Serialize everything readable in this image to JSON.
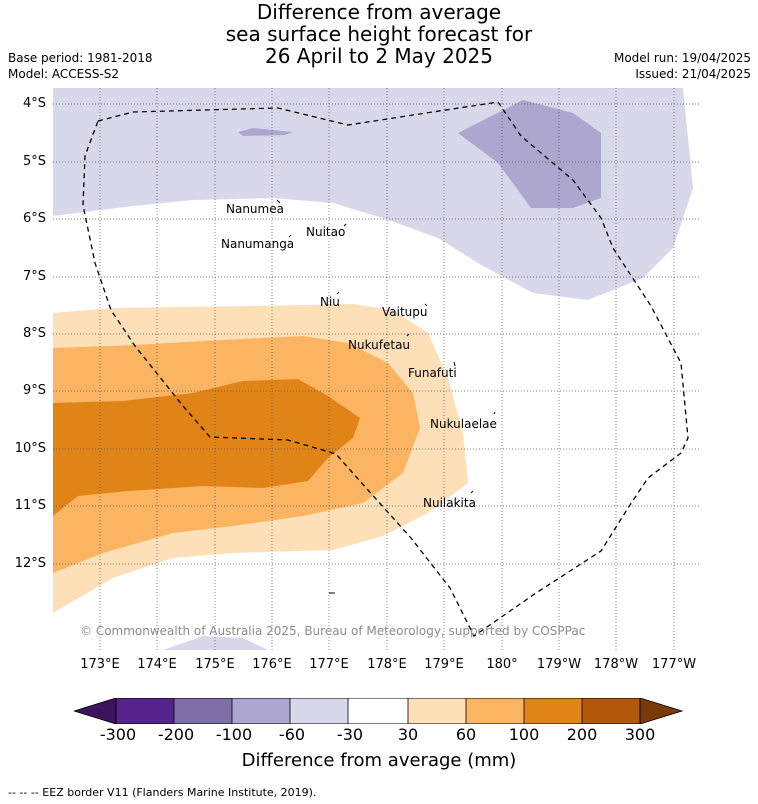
{
  "title": {
    "line1": "Difference from average",
    "line2": "sea surface height forecast for",
    "line3": "26 April to 2 May 2025"
  },
  "meta": {
    "base_period": "Base period: 1981-2018",
    "model": "Model: ACCESS-S2",
    "model_run": "Model run: 19/04/2025",
    "issued": "Issued: 21/04/2025"
  },
  "map": {
    "lat_labels": [
      "4°S",
      "5°S",
      "6°S",
      "7°S",
      "8°S",
      "9°S",
      "10°S",
      "11°S",
      "12°S"
    ],
    "lon_labels": [
      "173°E",
      "174°E",
      "175°E",
      "176°E",
      "177°E",
      "178°E",
      "179°E",
      "180°",
      "179°W",
      "178°W",
      "177°W"
    ],
    "islands": [
      "Nanumea",
      "Nuitao",
      "Nanumanga",
      "Niu",
      "Vaitupu",
      "Nukufetau",
      "Funafuti",
      "Nukulaelae",
      "Nuilakita"
    ],
    "copyright": "© Commonwealth of Australia 2025, Bureau of Meteorology, supported by COSPPac"
  },
  "colorbar": {
    "title": "Difference from average (mm)",
    "ticks": [
      "-300",
      "-200",
      "-100",
      "-60",
      "-30",
      "30",
      "60",
      "100",
      "200",
      "300"
    ],
    "colors": [
      "#3b1460",
      "#54248c",
      "#7e6fa9",
      "#ada6cf",
      "#d8d8ea",
      "#ffffff",
      "#fde0b8",
      "#fbb462",
      "#e18418",
      "#b2580a",
      "#7a3a06"
    ]
  },
  "footnote": "--  --  -- EEZ border V11 (Flanders Marine Institute, 2019)."
}
